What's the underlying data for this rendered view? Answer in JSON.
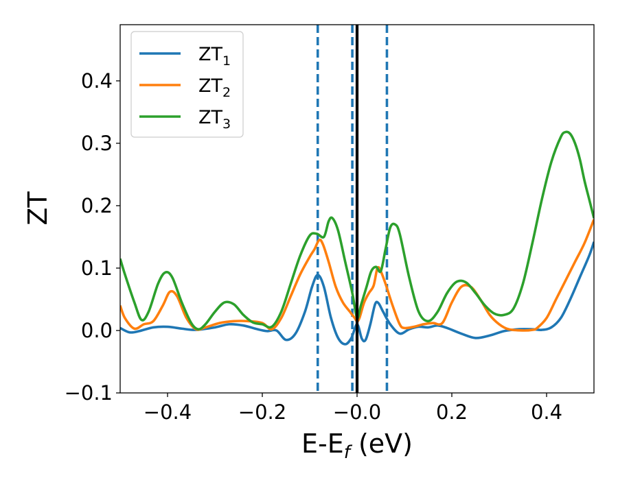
{
  "chart_data": {
    "type": "line",
    "title": "",
    "xlabel": "E-E",
    "xlabel_sub": "f",
    "xlabel_unit": " (eV)",
    "ylabel": "ZT",
    "xlim": [
      -0.5,
      0.5
    ],
    "ylim": [
      -0.1,
      0.49
    ],
    "x_ticks": [
      -0.4,
      -0.2,
      0.0,
      0.2,
      0.4
    ],
    "x_tick_labels": [
      "−0.4",
      "−0.2",
      "−0.0",
      "0.2",
      "0.4"
    ],
    "y_ticks": [
      -0.1,
      0.0,
      0.1,
      0.2,
      0.3,
      0.4
    ],
    "y_tick_labels": [
      "−0.1",
      "0.0",
      "0.1",
      "0.2",
      "0.3",
      "0.4"
    ],
    "grid": false,
    "legend_position": "top-left",
    "reference_lines": {
      "solid": {
        "x": 0.0,
        "color": "#000000"
      },
      "dashed": {
        "x": [
          -0.083,
          -0.01,
          0.063
        ],
        "color": "#1f77b4"
      }
    },
    "series": [
      {
        "name": "ZT",
        "sub": "1",
        "color": "#1f77b4",
        "points": [
          [
            -0.5,
            0.004
          ],
          [
            -0.48,
            -0.003
          ],
          [
            -0.46,
            -0.001
          ],
          [
            -0.43,
            0.005
          ],
          [
            -0.4,
            0.006
          ],
          [
            -0.37,
            0.003
          ],
          [
            -0.34,
            0.001
          ],
          [
            -0.3,
            0.005
          ],
          [
            -0.27,
            0.01
          ],
          [
            -0.24,
            0.008
          ],
          [
            -0.21,
            0.002
          ],
          [
            -0.19,
            -0.001
          ],
          [
            -0.17,
            0.0
          ],
          [
            -0.15,
            -0.015
          ],
          [
            -0.13,
            -0.005
          ],
          [
            -0.11,
            0.03
          ],
          [
            -0.095,
            0.07
          ],
          [
            -0.083,
            0.089
          ],
          [
            -0.07,
            0.07
          ],
          [
            -0.055,
            0.02
          ],
          [
            -0.04,
            -0.012
          ],
          [
            -0.025,
            -0.022
          ],
          [
            -0.012,
            -0.012
          ],
          [
            0.0,
            0.01
          ],
          [
            0.01,
            -0.013
          ],
          [
            0.018,
            -0.015
          ],
          [
            0.028,
            0.01
          ],
          [
            0.038,
            0.042
          ],
          [
            0.045,
            0.044
          ],
          [
            0.055,
            0.03
          ],
          [
            0.07,
            0.01
          ],
          [
            0.09,
            -0.005
          ],
          [
            0.11,
            0.002
          ],
          [
            0.13,
            0.006
          ],
          [
            0.15,
            0.005
          ],
          [
            0.17,
            0.008
          ],
          [
            0.19,
            0.004
          ],
          [
            0.22,
            -0.005
          ],
          [
            0.25,
            -0.012
          ],
          [
            0.28,
            -0.008
          ],
          [
            0.31,
            -0.001
          ],
          [
            0.34,
            0.002
          ],
          [
            0.37,
            0.002
          ],
          [
            0.39,
            0.001
          ],
          [
            0.41,
            0.005
          ],
          [
            0.43,
            0.02
          ],
          [
            0.45,
            0.05
          ],
          [
            0.47,
            0.085
          ],
          [
            0.49,
            0.12
          ],
          [
            0.5,
            0.142
          ]
        ]
      },
      {
        "name": "ZT",
        "sub": "2",
        "color": "#ff7f0e",
        "points": [
          [
            -0.5,
            0.04
          ],
          [
            -0.49,
            0.02
          ],
          [
            -0.47,
            0.003
          ],
          [
            -0.45,
            0.01
          ],
          [
            -0.43,
            0.015
          ],
          [
            -0.41,
            0.04
          ],
          [
            -0.395,
            0.062
          ],
          [
            -0.38,
            0.055
          ],
          [
            -0.36,
            0.02
          ],
          [
            -0.34,
            0.002
          ],
          [
            -0.32,
            0.005
          ],
          [
            -0.29,
            0.012
          ],
          [
            -0.26,
            0.015
          ],
          [
            -0.23,
            0.015
          ],
          [
            -0.2,
            0.012
          ],
          [
            -0.18,
            0.002
          ],
          [
            -0.16,
            0.02
          ],
          [
            -0.14,
            0.055
          ],
          [
            -0.12,
            0.09
          ],
          [
            -0.1,
            0.118
          ],
          [
            -0.09,
            0.13
          ],
          [
            -0.08,
            0.145
          ],
          [
            -0.072,
            0.138
          ],
          [
            -0.06,
            0.11
          ],
          [
            -0.045,
            0.07
          ],
          [
            -0.03,
            0.045
          ],
          [
            -0.015,
            0.03
          ],
          [
            -0.005,
            0.02
          ],
          [
            0.0,
            0.015
          ],
          [
            0.005,
            0.02
          ],
          [
            0.015,
            0.045
          ],
          [
            0.025,
            0.06
          ],
          [
            0.035,
            0.072
          ],
          [
            0.043,
            0.1
          ],
          [
            0.05,
            0.095
          ],
          [
            0.06,
            0.075
          ],
          [
            0.075,
            0.04
          ],
          [
            0.09,
            0.01
          ],
          [
            0.1,
            0.004
          ],
          [
            0.12,
            0.006
          ],
          [
            0.14,
            0.01
          ],
          [
            0.16,
            0.012
          ],
          [
            0.18,
            0.012
          ],
          [
            0.2,
            0.045
          ],
          [
            0.22,
            0.07
          ],
          [
            0.24,
            0.07
          ],
          [
            0.26,
            0.05
          ],
          [
            0.28,
            0.025
          ],
          [
            0.3,
            0.01
          ],
          [
            0.32,
            0.002
          ],
          [
            0.35,
            0.0
          ],
          [
            0.37,
            0.001
          ],
          [
            0.38,
            0.004
          ],
          [
            0.4,
            0.02
          ],
          [
            0.42,
            0.05
          ],
          [
            0.44,
            0.08
          ],
          [
            0.46,
            0.11
          ],
          [
            0.48,
            0.14
          ],
          [
            0.5,
            0.178
          ]
        ]
      },
      {
        "name": "ZT",
        "sub": "3",
        "color": "#2ca02c",
        "points": [
          [
            -0.5,
            0.115
          ],
          [
            -0.49,
            0.09
          ],
          [
            -0.47,
            0.045
          ],
          [
            -0.455,
            0.017
          ],
          [
            -0.44,
            0.03
          ],
          [
            -0.42,
            0.075
          ],
          [
            -0.405,
            0.093
          ],
          [
            -0.39,
            0.085
          ],
          [
            -0.37,
            0.045
          ],
          [
            -0.35,
            0.012
          ],
          [
            -0.335,
            0.002
          ],
          [
            -0.32,
            0.01
          ],
          [
            -0.3,
            0.03
          ],
          [
            -0.28,
            0.045
          ],
          [
            -0.26,
            0.042
          ],
          [
            -0.24,
            0.025
          ],
          [
            -0.22,
            0.013
          ],
          [
            -0.2,
            0.01
          ],
          [
            -0.18,
            0.006
          ],
          [
            -0.16,
            0.03
          ],
          [
            -0.14,
            0.075
          ],
          [
            -0.12,
            0.12
          ],
          [
            -0.1,
            0.152
          ],
          [
            -0.085,
            0.155
          ],
          [
            -0.07,
            0.15
          ],
          [
            -0.06,
            0.175
          ],
          [
            -0.052,
            0.18
          ],
          [
            -0.04,
            0.16
          ],
          [
            -0.025,
            0.11
          ],
          [
            -0.01,
            0.06
          ],
          [
            0.0,
            0.02
          ],
          [
            0.008,
            0.04
          ],
          [
            0.02,
            0.07
          ],
          [
            0.03,
            0.095
          ],
          [
            0.04,
            0.102
          ],
          [
            0.05,
            0.095
          ],
          [
            0.06,
            0.13
          ],
          [
            0.07,
            0.165
          ],
          [
            0.08,
            0.17
          ],
          [
            0.09,
            0.155
          ],
          [
            0.11,
            0.085
          ],
          [
            0.13,
            0.03
          ],
          [
            0.15,
            0.015
          ],
          [
            0.17,
            0.03
          ],
          [
            0.19,
            0.06
          ],
          [
            0.21,
            0.078
          ],
          [
            0.23,
            0.077
          ],
          [
            0.25,
            0.06
          ],
          [
            0.27,
            0.04
          ],
          [
            0.29,
            0.027
          ],
          [
            0.31,
            0.025
          ],
          [
            0.33,
            0.035
          ],
          [
            0.35,
            0.075
          ],
          [
            0.37,
            0.14
          ],
          [
            0.39,
            0.21
          ],
          [
            0.41,
            0.27
          ],
          [
            0.43,
            0.31
          ],
          [
            0.44,
            0.318
          ],
          [
            0.45,
            0.315
          ],
          [
            0.46,
            0.3
          ],
          [
            0.47,
            0.275
          ],
          [
            0.48,
            0.24
          ],
          [
            0.49,
            0.21
          ],
          [
            0.5,
            0.18
          ]
        ]
      }
    ]
  }
}
